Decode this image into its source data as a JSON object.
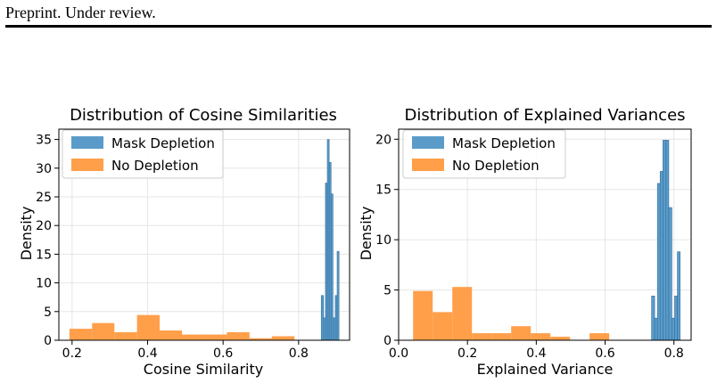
{
  "page": {
    "header": "Preprint. Under review."
  },
  "chart_data": [
    {
      "type": "bar",
      "title": "Distribution of Cosine Similarities",
      "xlabel": "Cosine Similarity",
      "ylabel": "Density",
      "xlim": [
        0.165,
        0.935
      ],
      "ylim": [
        0,
        36.8
      ],
      "xticks": [
        "0.2",
        "0.4",
        "0.6",
        "0.8"
      ],
      "xtick_values": [
        0.2,
        0.4,
        0.6,
        0.8
      ],
      "yticks": [
        "0",
        "5",
        "10",
        "15",
        "20",
        "25",
        "30",
        "35"
      ],
      "ytick_values": [
        0,
        5,
        10,
        15,
        20,
        25,
        30,
        35
      ],
      "grid": true,
      "legend": "top-left",
      "series": [
        {
          "name": "No Depletion",
          "color": "#ff9f4a",
          "bins": [
            {
              "x0": 0.193,
              "x1": 0.253,
              "y": 2.0
            },
            {
              "x0": 0.253,
              "x1": 0.312,
              "y": 3.0
            },
            {
              "x0": 0.312,
              "x1": 0.372,
              "y": 1.4
            },
            {
              "x0": 0.372,
              "x1": 0.432,
              "y": 4.4
            },
            {
              "x0": 0.432,
              "x1": 0.491,
              "y": 1.7
            },
            {
              "x0": 0.491,
              "x1": 0.551,
              "y": 1.0
            },
            {
              "x0": 0.551,
              "x1": 0.61,
              "y": 1.0
            },
            {
              "x0": 0.61,
              "x1": 0.67,
              "y": 1.4
            },
            {
              "x0": 0.67,
              "x1": 0.729,
              "y": 0.35
            },
            {
              "x0": 0.729,
              "x1": 0.789,
              "y": 0.7
            }
          ]
        },
        {
          "name": "Mask Depletion",
          "color": "#5b9bc9",
          "bins": [
            {
              "x0": 0.86,
              "x1": 0.866,
              "y": 7.8
            },
            {
              "x0": 0.866,
              "x1": 0.871,
              "y": 3.9
            },
            {
              "x0": 0.871,
              "x1": 0.876,
              "y": 27.4
            },
            {
              "x0": 0.876,
              "x1": 0.881,
              "y": 35.0
            },
            {
              "x0": 0.881,
              "x1": 0.886,
              "y": 31.0
            },
            {
              "x0": 0.886,
              "x1": 0.891,
              "y": 25.5
            },
            {
              "x0": 0.891,
              "x1": 0.897,
              "y": 3.9
            },
            {
              "x0": 0.897,
              "x1": 0.902,
              "y": 7.8
            },
            {
              "x0": 0.902,
              "x1": 0.907,
              "y": 15.5
            }
          ]
        }
      ]
    },
    {
      "type": "bar",
      "title": "Distribution of Explained Variances",
      "xlabel": "Explained Variance",
      "ylabel": "Density",
      "xlim": [
        0.0,
        0.85
      ],
      "ylim": [
        0,
        21.0
      ],
      "xticks": [
        "0.0",
        "0.2",
        "0.4",
        "0.6",
        "0.8"
      ],
      "xtick_values": [
        0.0,
        0.2,
        0.4,
        0.6,
        0.8
      ],
      "yticks": [
        "0",
        "5",
        "10",
        "15",
        "20"
      ],
      "ytick_values": [
        0,
        5,
        10,
        15,
        20
      ],
      "grid": true,
      "legend": "top-left",
      "series": [
        {
          "name": "No Depletion",
          "color": "#ff9f4a",
          "bins": [
            {
              "x0": 0.042,
              "x1": 0.099,
              "y": 4.9
            },
            {
              "x0": 0.099,
              "x1": 0.156,
              "y": 2.8
            },
            {
              "x0": 0.156,
              "x1": 0.213,
              "y": 5.3
            },
            {
              "x0": 0.213,
              "x1": 0.27,
              "y": 0.7
            },
            {
              "x0": 0.27,
              "x1": 0.327,
              "y": 0.7
            },
            {
              "x0": 0.327,
              "x1": 0.384,
              "y": 1.4
            },
            {
              "x0": 0.384,
              "x1": 0.441,
              "y": 0.7
            },
            {
              "x0": 0.441,
              "x1": 0.498,
              "y": 0.35
            },
            {
              "x0": 0.498,
              "x1": 0.555,
              "y": 0.0
            },
            {
              "x0": 0.555,
              "x1": 0.612,
              "y": 0.7
            }
          ]
        },
        {
          "name": "Mask Depletion",
          "color": "#5b9bc9",
          "bins": [
            {
              "x0": 0.735,
              "x1": 0.744,
              "y": 4.4
            },
            {
              "x0": 0.744,
              "x1": 0.752,
              "y": 2.2
            },
            {
              "x0": 0.752,
              "x1": 0.76,
              "y": 15.6
            },
            {
              "x0": 0.76,
              "x1": 0.768,
              "y": 16.8
            },
            {
              "x0": 0.768,
              "x1": 0.777,
              "y": 19.9
            },
            {
              "x0": 0.777,
              "x1": 0.785,
              "y": 19.9
            },
            {
              "x0": 0.785,
              "x1": 0.794,
              "y": 13.2
            },
            {
              "x0": 0.794,
              "x1": 0.802,
              "y": 2.2
            },
            {
              "x0": 0.802,
              "x1": 0.81,
              "y": 4.4
            },
            {
              "x0": 0.81,
              "x1": 0.818,
              "y": 8.8
            }
          ]
        }
      ]
    }
  ]
}
